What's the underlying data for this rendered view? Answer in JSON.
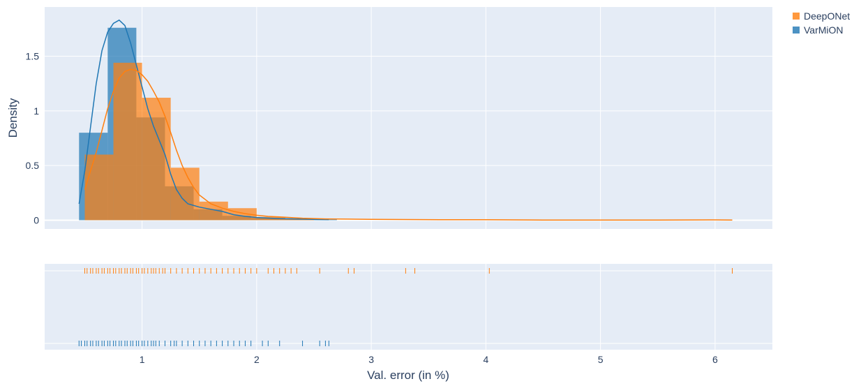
{
  "chart_data": {
    "type": "histogram",
    "title": "",
    "xlabel": "Val. error (in %)",
    "ylabel": "Density",
    "xlim": [
      0.15,
      6.5
    ],
    "ylim": [
      -0.08,
      1.95
    ],
    "x_ticks": [
      1,
      2,
      3,
      4,
      5,
      6
    ],
    "y_ticks": [
      0,
      0.5,
      1,
      1.5
    ],
    "y_tick_labels": [
      "0",
      "0.5",
      "1",
      "1.5"
    ],
    "grid": true,
    "legend_position": "top-right",
    "series": [
      {
        "name": "VarMiON",
        "color": "#1f77b4",
        "bins": [
          {
            "x0": 0.45,
            "x1": 0.7,
            "density": 0.8
          },
          {
            "x0": 0.7,
            "x1": 0.95,
            "density": 1.76
          },
          {
            "x0": 0.95,
            "x1": 1.2,
            "density": 0.94
          },
          {
            "x0": 1.2,
            "x1": 1.45,
            "density": 0.31
          },
          {
            "x0": 1.45,
            "x1": 1.7,
            "density": 0.1
          },
          {
            "x0": 1.7,
            "x1": 1.95,
            "density": 0.04
          },
          {
            "x0": 1.95,
            "x1": 2.2,
            "density": 0.02
          },
          {
            "x0": 2.2,
            "x1": 2.45,
            "density": 0.01
          },
          {
            "x0": 2.45,
            "x1": 2.7,
            "density": 0.008
          }
        ],
        "kde": [
          [
            0.45,
            0.15
          ],
          [
            0.5,
            0.45
          ],
          [
            0.55,
            0.85
          ],
          [
            0.6,
            1.25
          ],
          [
            0.65,
            1.55
          ],
          [
            0.7,
            1.72
          ],
          [
            0.75,
            1.8
          ],
          [
            0.8,
            1.83
          ],
          [
            0.85,
            1.78
          ],
          [
            0.9,
            1.62
          ],
          [
            0.95,
            1.42
          ],
          [
            1.0,
            1.22
          ],
          [
            1.05,
            1.02
          ],
          [
            1.1,
            0.86
          ],
          [
            1.15,
            0.73
          ],
          [
            1.2,
            0.6
          ],
          [
            1.25,
            0.42
          ],
          [
            1.3,
            0.28
          ],
          [
            1.35,
            0.2
          ],
          [
            1.4,
            0.15
          ],
          [
            1.5,
            0.12
          ],
          [
            1.6,
            0.1
          ],
          [
            1.7,
            0.08
          ],
          [
            1.8,
            0.05
          ],
          [
            1.9,
            0.035
          ],
          [
            2.0,
            0.025
          ],
          [
            2.2,
            0.015
          ],
          [
            2.4,
            0.01
          ],
          [
            2.63,
            0.005
          ]
        ],
        "rug": [
          0.45,
          0.47,
          0.5,
          0.52,
          0.55,
          0.57,
          0.6,
          0.62,
          0.65,
          0.67,
          0.7,
          0.72,
          0.75,
          0.77,
          0.8,
          0.82,
          0.85,
          0.87,
          0.9,
          0.92,
          0.95,
          0.97,
          1.0,
          1.02,
          1.05,
          1.08,
          1.1,
          1.12,
          1.15,
          1.2,
          1.25,
          1.28,
          1.3,
          1.35,
          1.4,
          1.45,
          1.5,
          1.55,
          1.6,
          1.65,
          1.7,
          1.75,
          1.8,
          1.85,
          1.9,
          1.95,
          2.05,
          2.1,
          2.2,
          2.4,
          2.55,
          2.6,
          2.63
        ]
      },
      {
        "name": "DeepONet",
        "color": "#ff7f0e",
        "bins": [
          {
            "x0": 0.5,
            "x1": 0.75,
            "density": 0.6
          },
          {
            "x0": 0.75,
            "x1": 1.0,
            "density": 1.44
          },
          {
            "x0": 1.0,
            "x1": 1.25,
            "density": 1.12
          },
          {
            "x0": 1.25,
            "x1": 1.5,
            "density": 0.48
          },
          {
            "x0": 1.5,
            "x1": 1.75,
            "density": 0.17
          },
          {
            "x0": 1.75,
            "x1": 2.0,
            "density": 0.11
          },
          {
            "x0": 2.0,
            "x1": 2.25,
            "density": 0.03
          },
          {
            "x0": 2.25,
            "x1": 2.5,
            "density": 0.01
          }
        ],
        "kde": [
          [
            0.5,
            0.28
          ],
          [
            0.55,
            0.45
          ],
          [
            0.6,
            0.62
          ],
          [
            0.65,
            0.82
          ],
          [
            0.7,
            1.02
          ],
          [
            0.75,
            1.18
          ],
          [
            0.8,
            1.3
          ],
          [
            0.85,
            1.36
          ],
          [
            0.9,
            1.38
          ],
          [
            0.95,
            1.37
          ],
          [
            1.0,
            1.33
          ],
          [
            1.05,
            1.27
          ],
          [
            1.1,
            1.18
          ],
          [
            1.15,
            1.08
          ],
          [
            1.2,
            0.95
          ],
          [
            1.25,
            0.8
          ],
          [
            1.3,
            0.64
          ],
          [
            1.35,
            0.5
          ],
          [
            1.4,
            0.39
          ],
          [
            1.45,
            0.3
          ],
          [
            1.5,
            0.23
          ],
          [
            1.6,
            0.15
          ],
          [
            1.7,
            0.11
          ],
          [
            1.8,
            0.08
          ],
          [
            1.9,
            0.06
          ],
          [
            2.0,
            0.045
          ],
          [
            2.1,
            0.035
          ],
          [
            2.2,
            0.03
          ],
          [
            2.4,
            0.018
          ],
          [
            2.6,
            0.012
          ],
          [
            2.8,
            0.01
          ],
          [
            3.0,
            0.008
          ],
          [
            3.3,
            0.006
          ],
          [
            3.6,
            0.004
          ],
          [
            4.0,
            0.004
          ],
          [
            4.5,
            0.002
          ],
          [
            5.0,
            0.002
          ],
          [
            5.5,
            0.002
          ],
          [
            6.0,
            0.003
          ],
          [
            6.15,
            0.002
          ]
        ],
        "rug": [
          0.5,
          0.52,
          0.55,
          0.57,
          0.6,
          0.62,
          0.65,
          0.67,
          0.7,
          0.72,
          0.75,
          0.77,
          0.8,
          0.82,
          0.85,
          0.87,
          0.9,
          0.92,
          0.95,
          0.97,
          1.0,
          1.02,
          1.05,
          1.08,
          1.1,
          1.12,
          1.15,
          1.18,
          1.2,
          1.25,
          1.3,
          1.35,
          1.4,
          1.45,
          1.5,
          1.55,
          1.6,
          1.65,
          1.7,
          1.75,
          1.8,
          1.85,
          1.9,
          1.95,
          2.0,
          2.1,
          2.15,
          2.2,
          2.25,
          2.3,
          2.35,
          2.55,
          2.8,
          2.85,
          3.3,
          3.38,
          4.03,
          6.15
        ]
      }
    ]
  }
}
